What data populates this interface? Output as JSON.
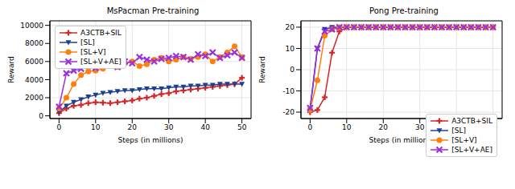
{
  "chart_data": [
    {
      "type": "line",
      "title": "MsPacman Pre-training",
      "x_label": "Steps (in millions)",
      "y_label": "Reward",
      "x": [
        0,
        2,
        4,
        6,
        8,
        10,
        12,
        14,
        16,
        18,
        20,
        22,
        24,
        26,
        28,
        30,
        32,
        34,
        36,
        38,
        40,
        42,
        44,
        46,
        48,
        50
      ],
      "xlim": [
        -2.5,
        52.5
      ],
      "xticks": [
        0,
        10,
        20,
        30,
        40,
        50
      ],
      "ylim": [
        -300,
        10500
      ],
      "yticks": [
        0,
        2000,
        4000,
        6000,
        8000,
        10000
      ],
      "grid": true,
      "legend": "upper left",
      "series": [
        {
          "name": "A3CTB+SIL",
          "color": "#d62728",
          "marker": "plus",
          "values": [
            300,
            800,
            1100,
            1200,
            1400,
            1500,
            1450,
            1400,
            1500,
            1600,
            1700,
            1900,
            2000,
            2200,
            2400,
            2500,
            2700,
            2800,
            2900,
            3000,
            3100,
            3200,
            3300,
            3400,
            3500,
            4200
          ]
        },
        {
          "name": "[SL]",
          "color": "#1f3f8f",
          "marker": "triangle_down",
          "values": [
            400,
            1100,
            1500,
            1800,
            2100,
            2300,
            2500,
            2600,
            2700,
            2800,
            2800,
            2900,
            3000,
            3000,
            3000,
            3100,
            3200,
            3200,
            3300,
            3300,
            3400,
            3400,
            3500,
            3500,
            3500,
            3500
          ]
        },
        {
          "name": "[SL+V]",
          "color": "#ff7f0e",
          "marker": "circle",
          "values": [
            800,
            2000,
            3500,
            4500,
            4900,
            5000,
            5200,
            5500,
            5400,
            5800,
            6000,
            5500,
            5700,
            6200,
            6400,
            6000,
            6200,
            6500,
            6300,
            6500,
            6800,
            6000,
            6500,
            7000,
            7700,
            6500
          ]
        },
        {
          "name": "[SL+V+AE]",
          "color": "#9b30d9",
          "marker": "x",
          "values": [
            1000,
            4700,
            5000,
            5200,
            5500,
            5300,
            5700,
            6000,
            5400,
            6000,
            5800,
            6500,
            6200,
            6000,
            6300,
            6400,
            6600,
            6500,
            6200,
            6800,
            6600,
            7000,
            6400,
            6700,
            7000,
            6400
          ]
        }
      ]
    },
    {
      "type": "line",
      "title": "Pong Pre-training",
      "x_label": "Steps (in millions)",
      "y_label": "Reward",
      "x": [
        0,
        2,
        4,
        6,
        8,
        10,
        12,
        14,
        16,
        18,
        20,
        22,
        24,
        26,
        28,
        30,
        32,
        34,
        36,
        38,
        40,
        42,
        44,
        46,
        48,
        50
      ],
      "xlim": [
        -2.5,
        52.5
      ],
      "xticks": [
        0,
        10,
        20,
        30,
        40,
        50
      ],
      "ylim": [
        -23,
        23
      ],
      "yticks": [
        -20,
        -10,
        0,
        10,
        20
      ],
      "grid": true,
      "legend": "lower right",
      "series": [
        {
          "name": "A3CTB+SIL",
          "color": "#d62728",
          "marker": "plus",
          "values": [
            -20,
            -19,
            -13,
            8,
            18,
            20,
            20,
            20,
            20,
            20,
            20,
            20,
            20,
            20,
            20,
            20,
            20,
            20,
            20,
            20,
            20,
            20,
            20,
            20,
            20,
            20
          ]
        },
        {
          "name": "[SL]",
          "color": "#1f3f8f",
          "marker": "triangle_down",
          "values": [
            -19,
            10,
            19,
            20,
            20,
            20,
            20,
            20,
            20,
            20,
            20,
            20,
            20,
            20,
            20,
            20,
            20,
            20,
            20,
            20,
            20,
            20,
            20,
            20,
            20,
            20
          ]
        },
        {
          "name": "[SL+V]",
          "color": "#ff7f0e",
          "marker": "circle",
          "values": [
            -19,
            -5,
            16,
            19,
            20,
            20,
            20,
            20,
            20,
            20,
            20,
            20,
            20,
            20,
            20,
            20,
            20,
            20,
            20,
            20,
            20,
            20,
            20,
            20,
            20,
            20
          ]
        },
        {
          "name": "[SL+V+AE]",
          "color": "#9b30d9",
          "marker": "x",
          "values": [
            -18,
            10,
            18,
            19,
            20,
            20,
            20,
            20,
            20,
            20,
            20,
            20,
            20,
            20,
            20,
            20,
            20,
            20,
            20,
            20,
            20,
            20,
            20,
            20,
            20,
            20
          ]
        }
      ]
    }
  ]
}
